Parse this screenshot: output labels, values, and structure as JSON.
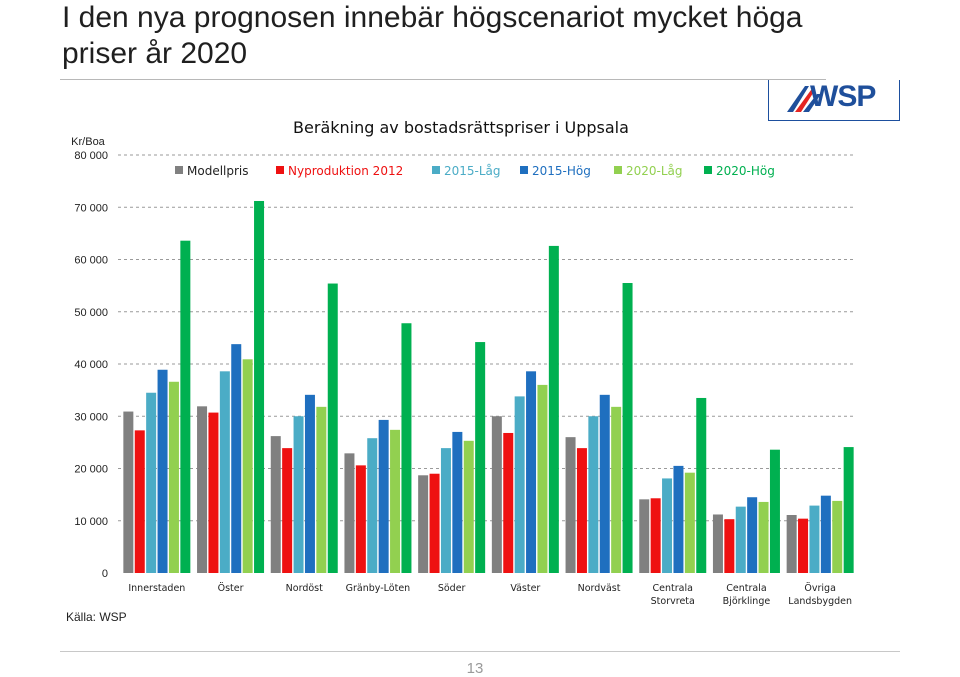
{
  "slide": {
    "title": "I den nya prognosen innebär högscenariot mycket höga priser år 2020",
    "source": "Källa: WSP",
    "page_number": "13",
    "logo_text": "WSP"
  },
  "colors": {
    "Modellpris": "#808080",
    "Nyproduktion 2012": "#ee1111",
    "2015-Låg": "#4bacc6",
    "2015-Hög": "#1f6fbf",
    "2020-Låg": "#92d050",
    "2020-Hög": "#00b050"
  },
  "chart_data": {
    "type": "bar",
    "title": "Beräkning av bostadsrättspriser i Uppsala",
    "ylabel_unit": "Kr/Boa",
    "ylim": [
      0,
      80000
    ],
    "yticks": [
      "0",
      "10 000",
      "20 000",
      "30 000",
      "40 000",
      "50 000",
      "60 000",
      "70 000",
      "80 000"
    ],
    "gridlines": "dashed",
    "legend_position": "top",
    "categories": [
      [
        "Innerstaden"
      ],
      [
        "Öster"
      ],
      [
        "Nordöst"
      ],
      [
        "Gränby-Löten"
      ],
      [
        "Söder"
      ],
      [
        "Väster"
      ],
      [
        "Nordväst"
      ],
      [
        "Centrala",
        "Storvreta"
      ],
      [
        "Centrala",
        "Björklinge"
      ],
      [
        "Övriga",
        "Landsbygden"
      ]
    ],
    "series": [
      {
        "name": "Modellpris",
        "values": [
          30900,
          31900,
          26200,
          22900,
          18700,
          30000,
          26000,
          14100,
          11200,
          11100
        ]
      },
      {
        "name": "Nyproduktion 2012",
        "values": [
          27300,
          30700,
          23900,
          20600,
          19000,
          26800,
          23900,
          14300,
          10300,
          10400
        ]
      },
      {
        "name": "2015-Låg",
        "values": [
          34500,
          38600,
          30000,
          25800,
          23900,
          33800,
          30000,
          18100,
          12700,
          12900
        ]
      },
      {
        "name": "2015-Hög",
        "values": [
          38900,
          43800,
          34100,
          29300,
          27000,
          38600,
          34100,
          20500,
          14500,
          14800
        ]
      },
      {
        "name": "2020-Låg",
        "values": [
          36600,
          40900,
          31800,
          27400,
          25300,
          36000,
          31800,
          19200,
          13600,
          13800
        ]
      },
      {
        "name": "2020-Hög",
        "values": [
          63600,
          71200,
          55400,
          47800,
          44200,
          62600,
          55500,
          33500,
          23600,
          24100
        ]
      }
    ]
  }
}
